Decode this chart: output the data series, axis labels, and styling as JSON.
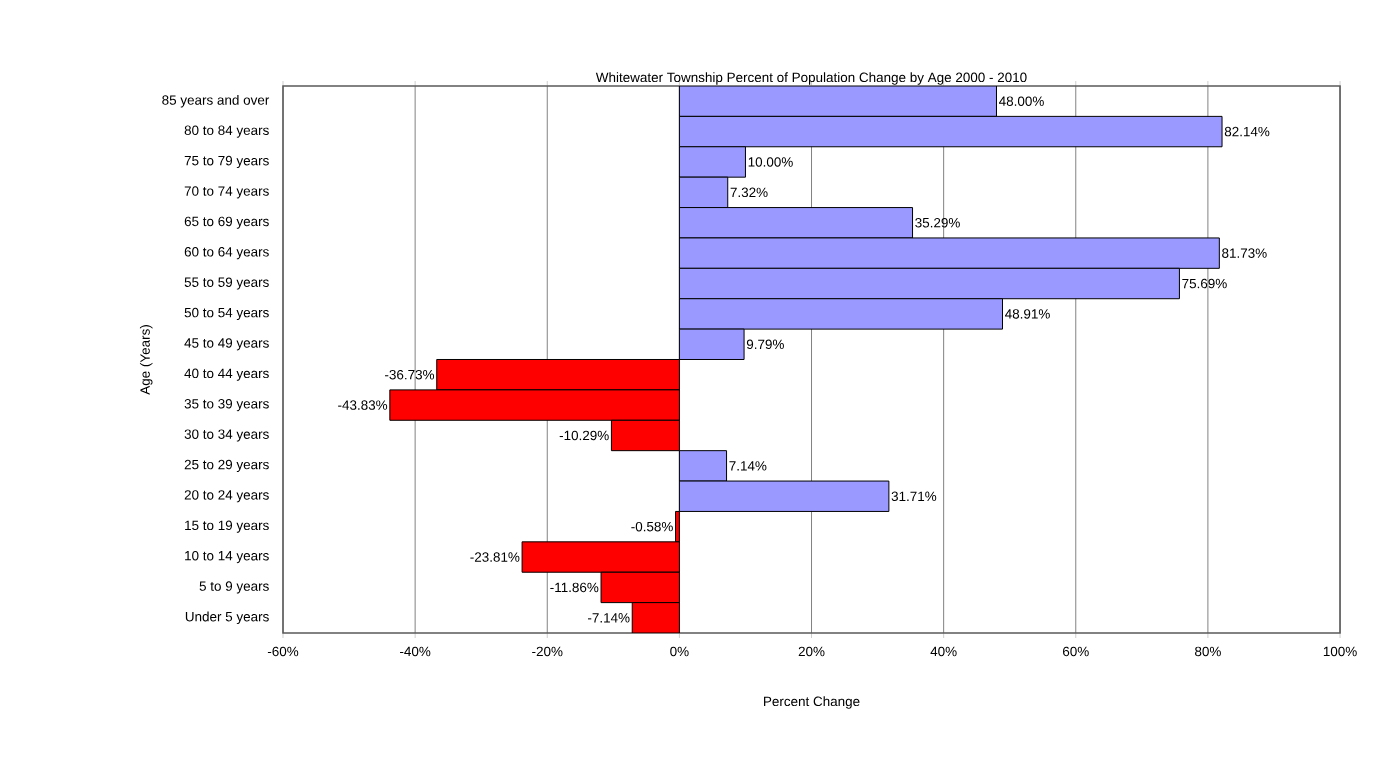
{
  "chart_data": {
    "type": "bar",
    "orientation": "horizontal",
    "title": "Whitewater Township Percent of Population Change by Age 2000 - 2010",
    "xlabel": "Percent Change",
    "ylabel": "Age (Years)",
    "categories": [
      "85 years and over",
      "80 to 84 years",
      "75 to 79 years",
      "70 to 74 years",
      "65 to 69 years",
      "60 to 64 years",
      "55 to 59 years",
      "50 to 54 years",
      "45 to 49 years",
      "40 to 44 years",
      "35 to 39 years",
      "30 to 34 years",
      "25 to 29 years",
      "20 to 24 years",
      "15 to 19 years",
      "10 to 14 years",
      "5 to 9 years",
      "Under 5 years"
    ],
    "values": [
      48.0,
      82.14,
      10.0,
      7.32,
      35.29,
      81.73,
      75.69,
      48.91,
      9.79,
      -36.73,
      -43.83,
      -10.29,
      7.14,
      31.71,
      -0.58,
      -23.81,
      -11.86,
      -7.14
    ],
    "value_labels": [
      "48.00%",
      "82.14%",
      "10.00%",
      "7.32%",
      "35.29%",
      "81.73%",
      "75.69%",
      "48.91%",
      "9.79%",
      "-36.73%",
      "-43.83%",
      "-10.29%",
      "7.14%",
      "31.71%",
      "-0.58%",
      "-23.81%",
      "-11.86%",
      "-7.14%"
    ],
    "colors": [
      "#9999ff",
      "#9999ff",
      "#9999ff",
      "#9999ff",
      "#9999ff",
      "#9999ff",
      "#9999ff",
      "#9999ff",
      "#9999ff",
      "#ff0000",
      "#ff0000",
      "#ff0000",
      "#9999ff",
      "#9999ff",
      "#ff0000",
      "#ff0000",
      "#ff0000",
      "#ff0000"
    ],
    "xlim": [
      -60,
      100
    ],
    "xticks": [
      {
        "value": -60,
        "label": "-60%"
      },
      {
        "value": -40,
        "label": "-40%"
      },
      {
        "value": -20,
        "label": "-20%"
      },
      {
        "value": 0,
        "label": "0%"
      },
      {
        "value": 20,
        "label": "20%"
      },
      {
        "value": 40,
        "label": "40%"
      },
      {
        "value": 60,
        "label": "60%"
      },
      {
        "value": 80,
        "label": "80%"
      },
      {
        "value": 100,
        "label": "100%"
      }
    ],
    "grid": "x"
  }
}
